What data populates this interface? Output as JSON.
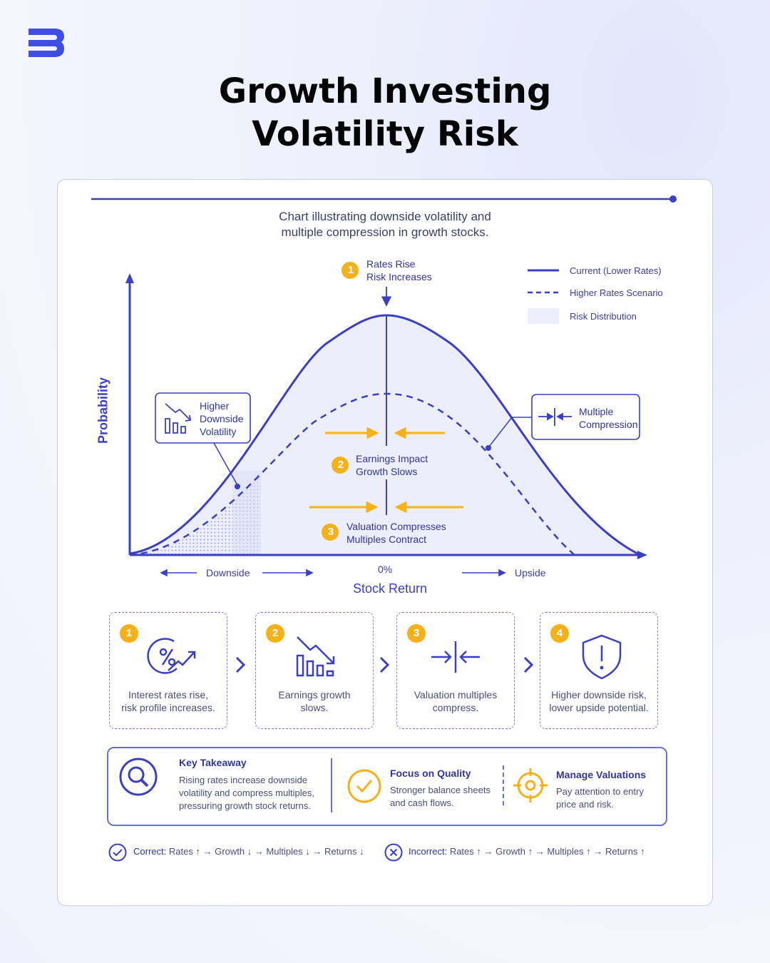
{
  "header": {
    "logo": "brand-logo",
    "title": "Growth Investing\nVolatility Risk"
  },
  "chart": {
    "subtitle": "Chart illustrating downside volatility and\nmultiple compression in growth stocks.",
    "y_axis_label": "Probability",
    "x_axis_label": "Stock Return",
    "x_left_label": "Downside",
    "x_center_label": "0%",
    "x_right_label": "Upside",
    "legend": [
      {
        "label": "Current (Lower Rates)",
        "style": "solid"
      },
      {
        "label": "Higher Rates Scenario",
        "style": "dashed"
      },
      {
        "label": "Risk Distribution",
        "style": "fill"
      }
    ],
    "annotations": {
      "step1": {
        "num": "1",
        "text": "Rates Rise\nRisk Increases"
      },
      "step2": {
        "num": "2",
        "text": "Earnings Impact\nGrowth Slows"
      },
      "step3": {
        "num": "3",
        "text": "Valuation Compresses\nMultiples Contract"
      },
      "left_box": "Higher\nDownside\nVolatility",
      "right_box": "Multiple\nCompression"
    },
    "colors": {
      "primary": "#3b3fc7",
      "accent": "#f5b119",
      "fill": "#eceefb"
    }
  },
  "steps": [
    {
      "num": "1",
      "icon": "percent-trend-icon",
      "text": "Interest rates rise,\nrisk profile increases."
    },
    {
      "num": "2",
      "icon": "declining-bars-icon",
      "text": "Earnings growth\nslows."
    },
    {
      "num": "3",
      "icon": "compress-arrows-icon",
      "text": "Valuation multiples\ncompress."
    },
    {
      "num": "4",
      "icon": "shield-alert-icon",
      "text": "Higher downside risk,\nlower upside potential."
    }
  ],
  "takeaway": {
    "key_title": "Key Takeaway",
    "key_text": "Rising rates increase downside\nvolatility and compress multiples,\npressuring growth stock returns.",
    "quality_title": "Focus on Quality",
    "quality_text": "Stronger balance sheets\nand cash flows.",
    "valuation_title": "Manage Valuations",
    "valuation_text": "Pay attention to entry\nprice and risk."
  },
  "footer": {
    "correct_label": "Correct:",
    "correct_text": "Rates ↑ → Growth ↓ → Multiples ↓ → Returns ↓",
    "incorrect_label": "Incorrect:",
    "incorrect_text": "Rates ↑ → Growth ↑ → Multiples ↑ → Returns ↑"
  }
}
